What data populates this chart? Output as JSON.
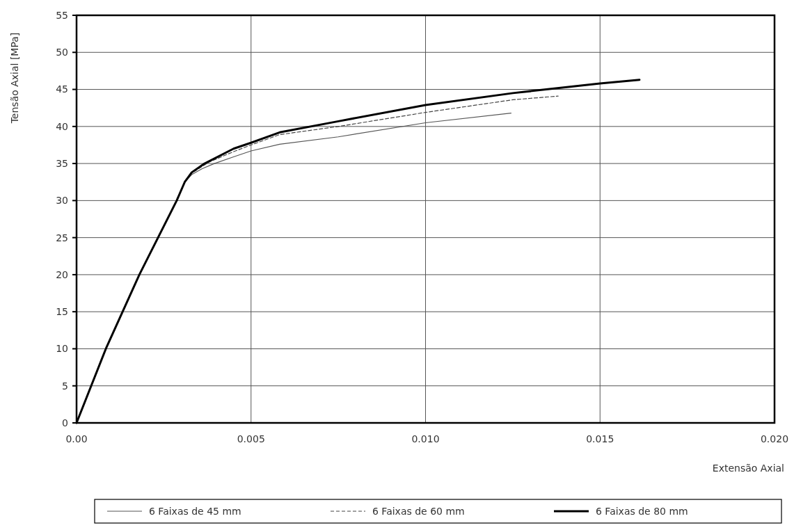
{
  "chart_data": {
    "type": "line",
    "xlabel": "Extensão Axial",
    "ylabel": "Tensão Axial [MPa]",
    "xlim": [
      0,
      0.02
    ],
    "ylim": [
      0,
      55
    ],
    "xticks": [
      {
        "value": 0,
        "label": "0.00"
      },
      {
        "value": 0.005,
        "label": "0.005"
      },
      {
        "value": 0.01,
        "label": "0.010"
      },
      {
        "value": 0.015,
        "label": "0.015"
      },
      {
        "value": 0.02,
        "label": "0.020"
      }
    ],
    "yticks": [
      0,
      5,
      10,
      15,
      20,
      25,
      30,
      35,
      40,
      45,
      50,
      55
    ],
    "grid": true,
    "legend": "bottom",
    "series": [
      {
        "name": "6 Faixas de 45 mm",
        "color": "#555555",
        "line_style": "solid",
        "x": [
          0,
          0.00084,
          0.0018,
          0.00287,
          0.0031,
          0.0033,
          0.0036,
          0.00395,
          0.0045,
          0.005,
          0.00582,
          0.0075,
          0.01,
          0.01245
        ],
        "values": [
          0,
          10,
          20,
          30,
          32.5,
          33.5,
          34.3,
          35,
          35.9,
          36.7,
          37.6,
          38.6,
          40.5,
          41.8
        ]
      },
      {
        "name": "6 Faixas de 60 mm",
        "color": "#444444",
        "line_style": "dashed",
        "x": [
          0,
          0.00084,
          0.0018,
          0.00287,
          0.0031,
          0.0033,
          0.0036,
          0.0038,
          0.0045,
          0.005,
          0.00582,
          0.0075,
          0.01,
          0.0125,
          0.0138
        ],
        "values": [
          0,
          10,
          20,
          30,
          32.5,
          33.7,
          34.6,
          35.2,
          36.6,
          37.5,
          38.9,
          40,
          41.9,
          43.6,
          44.1
        ]
      },
      {
        "name": "6 Faixas de 80 mm",
        "color": "#000000",
        "line_style": "solid",
        "x": [
          0,
          0.00084,
          0.0018,
          0.00287,
          0.0031,
          0.0033,
          0.00367,
          0.0045,
          0.005,
          0.00582,
          0.0075,
          0.01,
          0.0125,
          0.015,
          0.01613
        ],
        "values": [
          0,
          10,
          20,
          30,
          32.5,
          33.8,
          35,
          37,
          37.8,
          39.2,
          40.7,
          42.9,
          44.5,
          45.8,
          46.3
        ]
      }
    ]
  }
}
